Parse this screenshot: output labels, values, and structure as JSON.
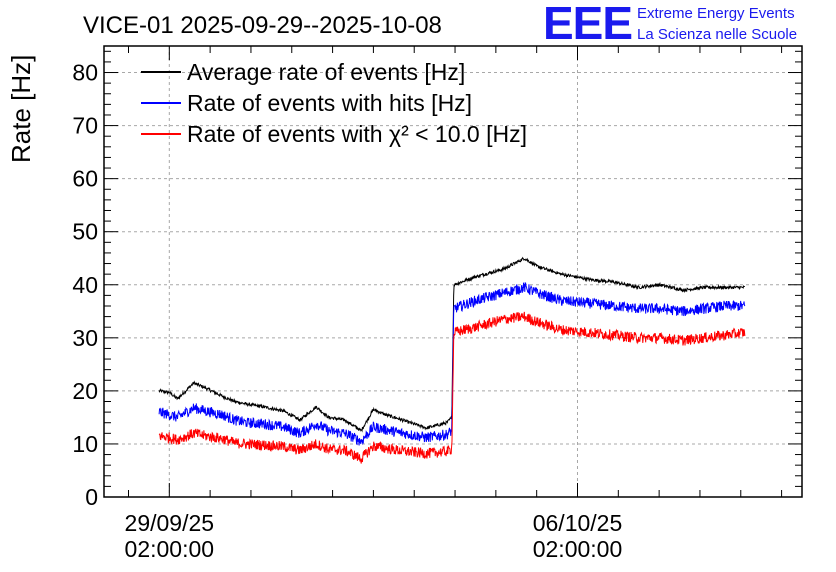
{
  "header": {
    "title": "VICE-01 2025-09-29--2025-10-08",
    "logo_text": "EEE",
    "logo_line1": "Extreme Energy Events",
    "logo_line2": "La Scienza nelle Scuole"
  },
  "chart_data": {
    "type": "line",
    "title": "VICE-01 2025-09-29--2025-10-08",
    "ylabel": "Rate [Hz]",
    "xlabel": "",
    "ylim": [
      0,
      85
    ],
    "y_ticks": [
      0,
      10,
      20,
      30,
      40,
      50,
      60,
      70,
      80
    ],
    "x_range_days": [
      -1.6,
      15.5
    ],
    "x_ticks": [
      {
        "at": 0,
        "label_date": "29/09/25",
        "label_time": "02:00:00"
      },
      {
        "at": 10,
        "label_date": "06/10/25",
        "label_time": "02:00:00"
      }
    ],
    "grid": true,
    "legend_position": "top-left",
    "series": [
      {
        "name": "Average rate of events [Hz]",
        "color": "#000000",
        "noise": 0.3,
        "x_days": [
          -0.25,
          0,
          0.2,
          0.6,
          0.9,
          1.3,
          1.6,
          1.9,
          2.3,
          2.8,
          3.2,
          3.6,
          3.9,
          4.3,
          4.7,
          5.0,
          5.3,
          5.6,
          5.9,
          6.3,
          6.8,
          6.92,
          6.97,
          7.5,
          8.2,
          8.7,
          9.0,
          9.6,
          10.3,
          10.9,
          11.5,
          12.0,
          12.6,
          13.1,
          13.6,
          14.1
        ],
        "values": [
          20,
          19.7,
          18.5,
          21.5,
          20.5,
          19,
          18,
          17.5,
          17,
          16.2,
          14.5,
          17,
          15,
          14.5,
          12.5,
          16.5,
          15.5,
          14.8,
          14,
          13,
          14,
          15,
          40,
          41.5,
          43,
          45,
          43.5,
          42,
          41,
          40.5,
          39.5,
          40,
          39,
          39.5,
          39.5,
          39.5
        ]
      },
      {
        "name": "Rate of events with hits [Hz]",
        "color": "#0000ff",
        "noise": 1.0,
        "x_days": [
          -0.25,
          0,
          0.2,
          0.6,
          0.9,
          1.3,
          1.6,
          1.9,
          2.3,
          2.8,
          3.2,
          3.6,
          3.9,
          4.3,
          4.7,
          5.0,
          5.3,
          5.6,
          5.9,
          6.3,
          6.8,
          6.92,
          6.97,
          7.5,
          8.2,
          8.7,
          9.0,
          9.6,
          10.3,
          10.9,
          11.5,
          12.0,
          12.6,
          13.1,
          13.6,
          14.1
        ],
        "values": [
          16,
          15.5,
          15,
          16.8,
          16.2,
          15.5,
          14.5,
          14,
          13.8,
          13.2,
          12,
          13.8,
          12.5,
          12,
          10.5,
          13.2,
          12.7,
          12.2,
          11.8,
          11.2,
          11.8,
          12.5,
          35.5,
          37,
          38.5,
          39.5,
          38.5,
          37,
          36.5,
          36,
          35.5,
          35.5,
          35,
          35.5,
          36,
          36
        ]
      },
      {
        "name": "Rate of events with χ² < 10.0 [Hz]",
        "color": "#ff0000",
        "noise": 1.0,
        "x_days": [
          -0.25,
          0,
          0.2,
          0.6,
          0.9,
          1.3,
          1.6,
          1.9,
          2.3,
          2.8,
          3.2,
          3.6,
          3.9,
          4.3,
          4.7,
          5.0,
          5.3,
          5.6,
          5.9,
          6.3,
          6.8,
          6.92,
          6.97,
          7.5,
          8.2,
          8.7,
          9.0,
          9.6,
          10.3,
          10.9,
          11.5,
          12.0,
          12.6,
          13.1,
          13.6,
          14.1
        ],
        "values": [
          11.5,
          11.2,
          10.8,
          12,
          11.5,
          11,
          10.2,
          10,
          9.8,
          9.5,
          8.8,
          10,
          9,
          8.8,
          7.2,
          9.6,
          9.2,
          8.8,
          8.5,
          8.2,
          8.6,
          9,
          31,
          32,
          33.5,
          34,
          33,
          31.5,
          31,
          30.5,
          30,
          30,
          29.5,
          30,
          30.5,
          31
        ]
      }
    ]
  }
}
